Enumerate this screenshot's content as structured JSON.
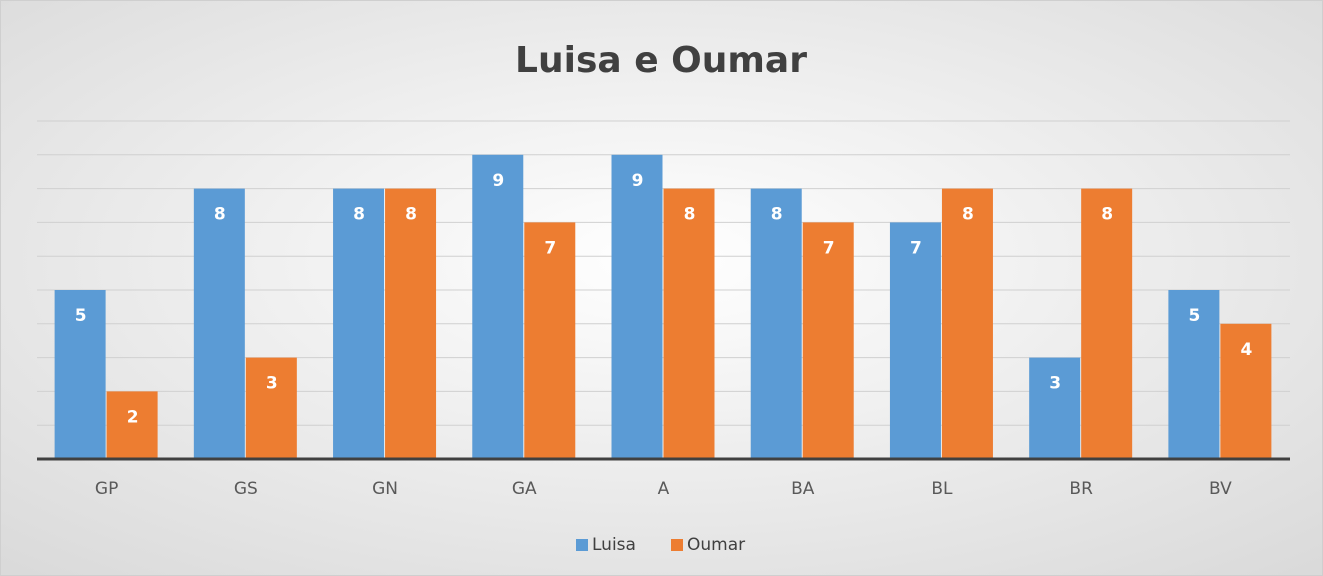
{
  "chart_data": {
    "type": "bar",
    "title": "Luisa e Oumar",
    "categories": [
      "GP",
      "GS",
      "GN",
      "GA",
      "A",
      "BA",
      "BL",
      "BR",
      "BV"
    ],
    "series": [
      {
        "name": "Luisa",
        "color": "#5b9bd5",
        "values": [
          5,
          8,
          8,
          9,
          9,
          8,
          7,
          3,
          5
        ]
      },
      {
        "name": "Oumar",
        "color": "#ed7d31",
        "values": [
          2,
          3,
          8,
          7,
          8,
          7,
          8,
          8,
          4
        ]
      }
    ],
    "ylim": [
      0,
      10
    ],
    "yticks": [
      0,
      1,
      2,
      3,
      4,
      5,
      6,
      7,
      8,
      9,
      10
    ],
    "grid": true,
    "legend": "bottom"
  }
}
